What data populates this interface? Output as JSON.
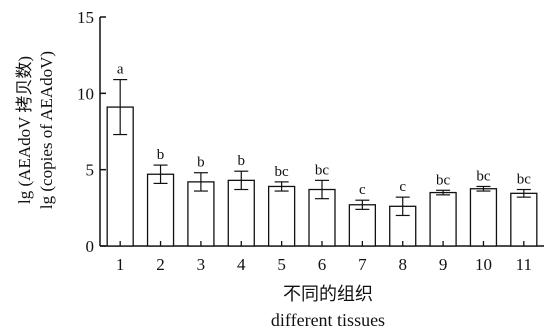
{
  "chart_data": {
    "type": "bar",
    "categories": [
      "1",
      "2",
      "3",
      "4",
      "5",
      "6",
      "7",
      "8",
      "9",
      "10",
      "11"
    ],
    "values": [
      9.1,
      4.7,
      4.2,
      4.3,
      3.9,
      3.7,
      2.7,
      2.6,
      3.5,
      3.75,
      3.45
    ],
    "errors": [
      1.8,
      0.6,
      0.6,
      0.6,
      0.3,
      0.6,
      0.3,
      0.6,
      0.15,
      0.15,
      0.25
    ],
    "significance_labels": [
      "a",
      "b",
      "b",
      "b",
      "bc",
      "bc",
      "c",
      "c",
      "bc",
      "bc",
      "bc"
    ],
    "ylim": [
      0,
      15
    ],
    "yticks": [
      0,
      5,
      10,
      15
    ],
    "ylabel_cn": "lg (AEAdoV 拷贝数)",
    "ylabel_en": "lg (copies of AEAdoV)",
    "xlabel_cn": "不同的组织",
    "xlabel_en": "different tissues",
    "grid": false,
    "bar_fill": "#ffffff",
    "stroke_color": "#111111"
  }
}
